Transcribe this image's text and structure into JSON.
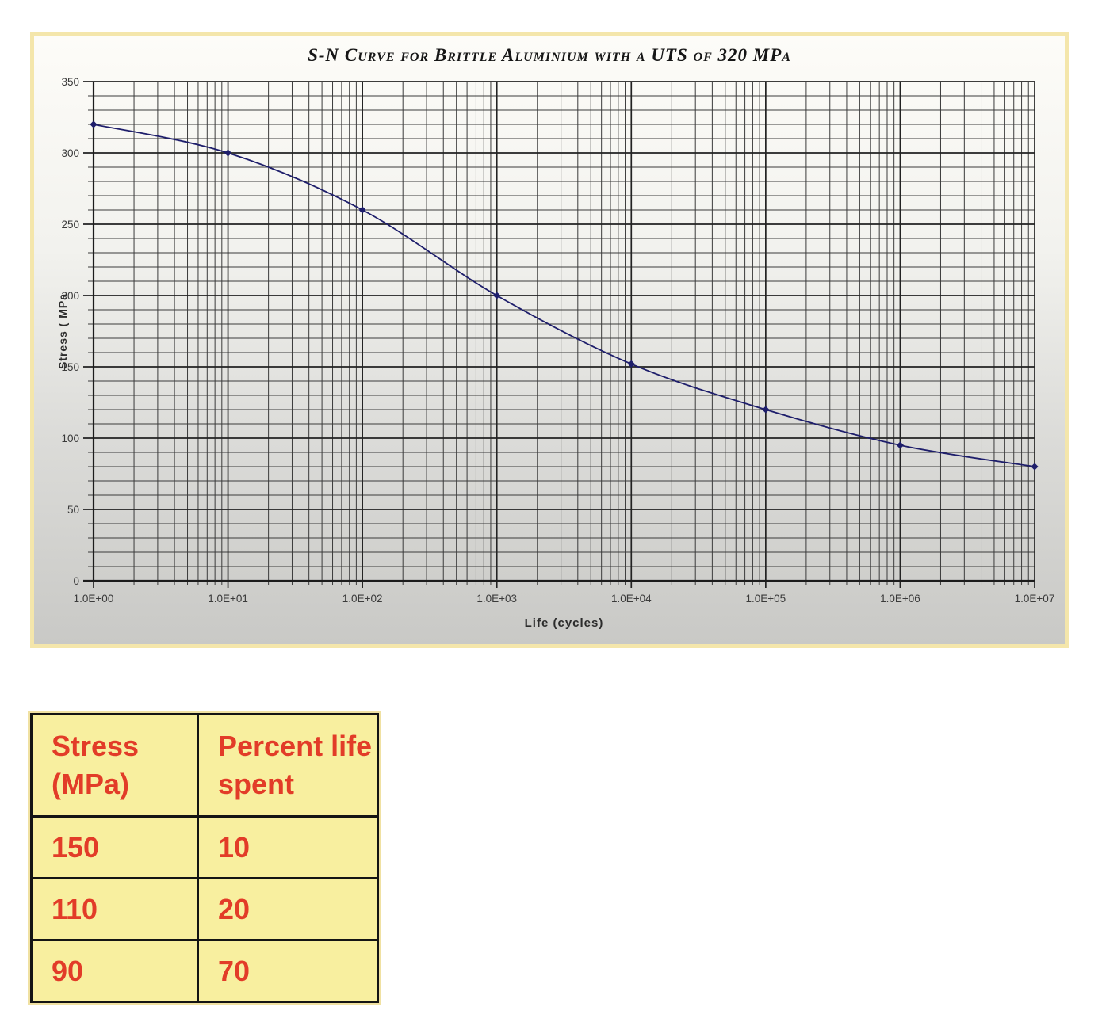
{
  "chart": {
    "title": "S-N Curve for Brittle Aluminium with a UTS of 320 MPa",
    "x_axis_label": "Life (cycles)",
    "y_axis_label": "Stress ( MPa",
    "x_tick_labels": [
      "1.0E+00",
      "1.0E+01",
      "1.0E+02",
      "1.0E+03",
      "1.0E+04",
      "1.0E+05",
      "1.0E+06",
      "1.0E+07"
    ],
    "y_tick_labels": [
      "0",
      "50",
      "100",
      "150",
      "200",
      "250",
      "300",
      "350"
    ],
    "colors": {
      "line": "#1e1e6b",
      "marker": "#1e1e6b",
      "grid_minor": "#3b3b3b",
      "grid_major": "#222222",
      "axis": "#1c1c1c",
      "tick_label": "#3a3a3a",
      "panel_border": "#f4e6ab"
    }
  },
  "chart_data": {
    "type": "line",
    "title": "S-N Curve for Brittle Aluminium with a UTS of 320 MPa",
    "xlabel": "Life (cycles)",
    "ylabel": "Stress ( MPa",
    "x_scale": "log10",
    "x": [
      1,
      10,
      100,
      1000,
      10000,
      100000,
      1000000,
      10000000
    ],
    "y": [
      320,
      300,
      260,
      200,
      152,
      120,
      95,
      80
    ],
    "xlim": [
      1,
      10000000
    ],
    "ylim": [
      0,
      350
    ],
    "y_major_step": 50,
    "y_minor_step": 10,
    "x_minor_ticks_per_decade": [
      2,
      3,
      4,
      5,
      6,
      7,
      8,
      9
    ],
    "grid": true,
    "legend": false,
    "marker": "diamond"
  },
  "table": {
    "headers": [
      "Stress (MPa)",
      "Percent life spent"
    ],
    "rows": [
      [
        "150",
        "10"
      ],
      [
        "110",
        "20"
      ],
      [
        "90",
        "70"
      ]
    ],
    "colors": {
      "background": "#f8ef9f",
      "text": "#e23c28",
      "border": "#141414"
    }
  }
}
